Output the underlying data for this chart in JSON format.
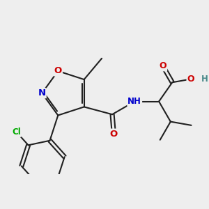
{
  "background_color": "#eeeeee",
  "atom_colors": {
    "C": "#202020",
    "N": "#0000cc",
    "O": "#cc0000",
    "Cl": "#00aa00",
    "H": "#4a8a8a"
  },
  "bond_color": "#202020",
  "bond_width": 1.5,
  "dbo": 0.055,
  "fs": 9.5,
  "fs_s": 8.5
}
